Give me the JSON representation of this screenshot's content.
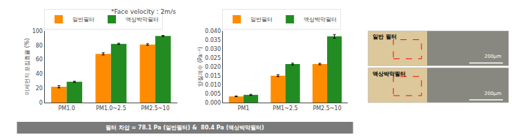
{
  "chart_data": [
    {
      "type": "bar",
      "title": "*Face velocity : 2m/s",
      "ylabel": "미세먼지 포집효율 (%)",
      "categories": [
        "PM1.0",
        "PM1.0~2.5",
        "PM2.5~10"
      ],
      "series": [
        {
          "name": "일반필터",
          "color": "#FF8C00",
          "values": [
            22,
            68,
            81
          ],
          "errors": [
            1.5,
            1.5,
            1.0
          ]
        },
        {
          "name": "액상박막필터",
          "color": "#228B22",
          "values": [
            29,
            82,
            93
          ],
          "errors": [
            0.8,
            0.8,
            0.8
          ]
        }
      ],
      "ylim": [
        0,
        100
      ],
      "yticks": [
        0,
        20,
        40,
        60,
        80,
        100
      ],
      "grid": false,
      "legend": "upper left"
    },
    {
      "type": "bar",
      "ylabel": "양질계수 (Pa⁻¹)",
      "categories": [
        "PM1",
        "PM1~2.5",
        "PM2.5~10"
      ],
      "series": [
        {
          "name": "일반필터",
          "color": "#FF8C00",
          "values": [
            0.0035,
            0.015,
            0.0215
          ],
          "errors": [
            0.0002,
            0.0005,
            0.0004
          ]
        },
        {
          "name": "액상박막필터",
          "color": "#228B22",
          "values": [
            0.0043,
            0.0215,
            0.037
          ],
          "errors": [
            0.0003,
            0.0005,
            0.001
          ]
        }
      ],
      "ylim": [
        0,
        0.04
      ],
      "yticks": [
        {
          "value": 0,
          "label": "0.000"
        },
        0.005,
        {
          "value": 0.01,
          "label": "0.010"
        },
        0.015,
        {
          "value": 0.02,
          "label": "0.020"
        },
        0.025,
        {
          "value": 0.03,
          "label": "0.030"
        },
        0.035,
        {
          "value": 0.04,
          "label": "0.040"
        }
      ],
      "grid": false,
      "legend": "upper left",
      "annotations": [
        "필터 차압 = 78.1 Pa (일반필터) &  80.4 Pa (액상박막필터)",
        "일반 필터",
        "200μm",
        "액상박막필터",
        "200μm"
      ]
    }
  ]
}
